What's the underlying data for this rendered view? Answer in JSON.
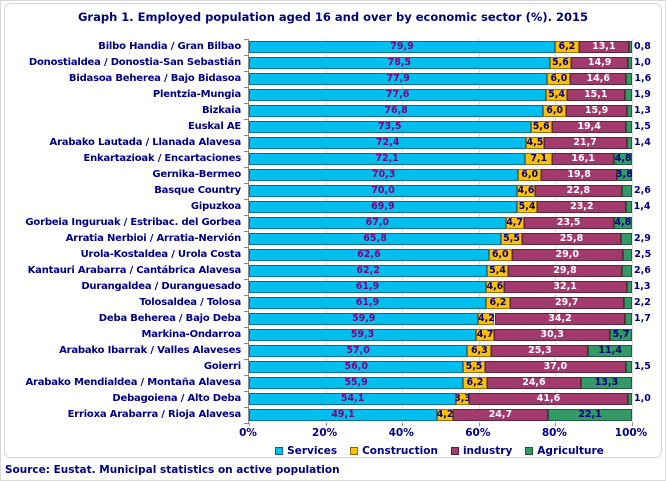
{
  "title": "Graph 1. Employed population aged 16 and over by economic sector (%). 2015",
  "source": "Source: Eustat. Municipal statistics on active population",
  "colors": {
    "title_text": "#000080",
    "category_text": "#000080",
    "axis_text": "#000080",
    "gridline": "#dcdcdc",
    "axis_line": "#8a8a8a"
  },
  "chart_data": {
    "type": "bar",
    "orientation": "horizontal-stacked",
    "title": "Graph 1. Employed population aged 16 and over by economic sector (%). 2015",
    "xlabel": "",
    "ylabel": "",
    "xlim": [
      0,
      100
    ],
    "x_ticks": [
      "0%",
      "20%",
      "40%",
      "60%",
      "80%",
      "100%"
    ],
    "x_tick_values": [
      0,
      20,
      40,
      60,
      80,
      100
    ],
    "grid": true,
    "legend_position": "bottom",
    "value_decimal_separator": ",",
    "categories": [
      "Bilbo Handia  /  Gran Bilbao",
      "Donostialdea  /  Donostia-San Sebastián",
      "Bidasoa Beherea  /  Bajo Bidasoa",
      "Plentzia-Mungia",
      "Bizkaia",
      "Euskal AE",
      "Arabako Lautada  /  Llanada Alavesa",
      "Enkartazioak  /  Encartaciones",
      "Gernika-Bermeo",
      "Basque Country",
      "Gipuzkoa",
      "Gorbeia Inguruak  /  Estribac. del Gorbea",
      "Arratia Nerbioi  /  Arratia-Nervión",
      "Urola-Kostaldea  /  Urola Costa",
      "Kantauri Arabarra  /  Cantábrica Alavesa",
      "Durangaldea  /  Duranguesado",
      "Tolosaldea  /  Tolosa",
      "Deba Beherea  /  Bajo Deba",
      "Markina-Ondarroa",
      "Arabako Ibarrak  /  Valles Alaveses",
      "Goierri",
      "Arabako Mendialdea  /  Montaña Alavesa",
      "Debagoiena  /  Alto Deba",
      "Errioxa Arabarra  /  Rioja Alavesa"
    ],
    "series": [
      {
        "name": "Services",
        "color": "#00bff0",
        "label_color": "#800080",
        "values": [
          79.9,
          78.5,
          77.9,
          77.6,
          76.8,
          73.5,
          72.4,
          72.1,
          70.3,
          70.0,
          69.9,
          67.0,
          65.8,
          62.6,
          62.2,
          61.9,
          61.9,
          59.9,
          59.3,
          57.0,
          56.0,
          55.9,
          54.1,
          49.1
        ]
      },
      {
        "name": "Construction",
        "color": "#ffc000",
        "label_color": "#000080",
        "values": [
          6.2,
          5.6,
          6.0,
          5.4,
          6.0,
          5.6,
          4.5,
          7.1,
          6.0,
          4.6,
          5.4,
          4.7,
          5.5,
          6.0,
          5.4,
          4.6,
          6.2,
          4.2,
          4.7,
          6.3,
          5.5,
          6.2,
          3.3,
          4.2
        ]
      },
      {
        "name": "industry",
        "color": "#a23a6b",
        "label_color": "#ffffff",
        "values": [
          13.1,
          14.9,
          14.6,
          15.1,
          15.9,
          19.4,
          21.7,
          16.1,
          19.8,
          22.8,
          23.2,
          23.5,
          25.8,
          29.0,
          29.8,
          32.1,
          29.7,
          34.2,
          30.3,
          25.3,
          37.0,
          24.6,
          41.6,
          24.7
        ]
      },
      {
        "name": "Agriculture",
        "color": "#339966",
        "label_color": "#000080",
        "values": [
          0.8,
          1.0,
          1.6,
          1.9,
          1.3,
          1.5,
          1.4,
          4.8,
          3.8,
          2.6,
          1.4,
          4.8,
          2.9,
          2.5,
          2.6,
          1.3,
          2.2,
          1.7,
          5.7,
          11.4,
          1.5,
          13.3,
          1.0,
          22.1
        ]
      }
    ]
  }
}
